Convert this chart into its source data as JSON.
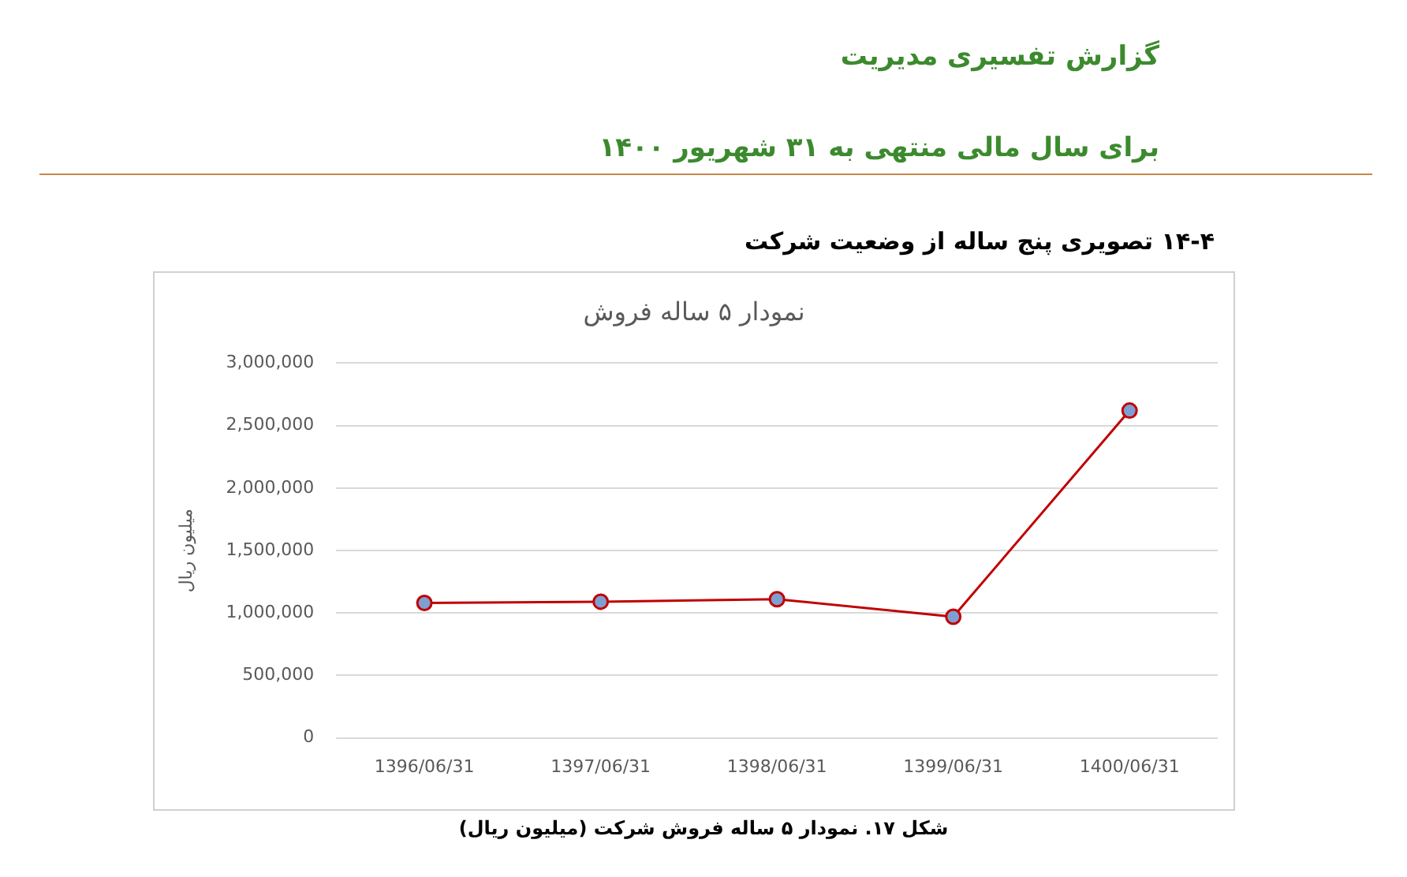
{
  "chart_data": {
    "type": "line",
    "title": "نمودار ۵ ساله فروش",
    "ylabel": "میلیون ریال",
    "categories": [
      "1396/06/31",
      "1397/06/31",
      "1398/06/31",
      "1399/06/31",
      "1400/06/31"
    ],
    "series": [
      {
        "color": "#c00000",
        "values": [
          1080000,
          1090000,
          1110000,
          970000,
          2620000
        ]
      }
    ],
    "ylim": [
      0,
      3000000
    ],
    "yticks": [
      0,
      {
        "value": 500000,
        "label": "500,000"
      },
      {
        "value": 1000000,
        "label": "1,000,000"
      },
      {
        "value": 1500000,
        "label": "1,500,000"
      },
      {
        "value": 2000000,
        "label": "2,000,000"
      },
      {
        "value": 2500000,
        "label": "2,500,000"
      },
      {
        "value": 3000000,
        "label": "3,000,000"
      }
    ],
    "grid": "y",
    "legend": false,
    "marker": "circle",
    "line_style": "solid",
    "annotations": [
      "گزارش تفسیری مدیریت",
      "برای سال مالی منتهی به ۳۱ شهریور ۱۴۰۰",
      "۱۴-۴ تصویری پنج ساله از وضعیت شرکت",
      "شکل ۱۷. نمودار ۵ ساله فروش شرکت (میلیون ریال)"
    ]
  }
}
